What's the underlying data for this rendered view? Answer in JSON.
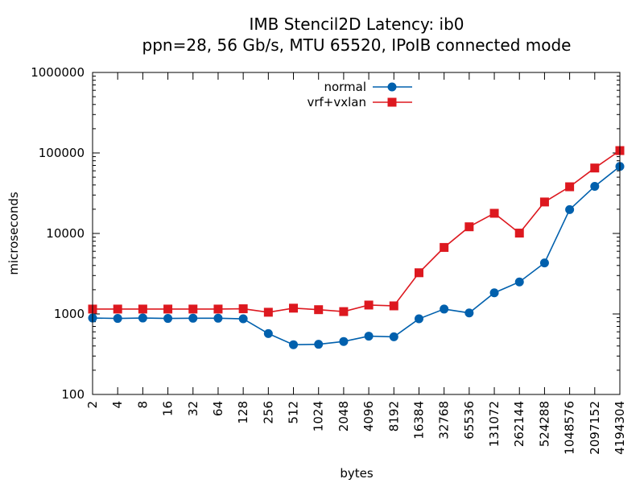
{
  "chart_data": {
    "type": "line",
    "title": "IMB Stencil2D Latency: ib0",
    "subtitle": "ppn=28, 56 Gb/s, MTU 65520, IPoIB connected mode",
    "xlabel": "bytes",
    "ylabel": "microseconds",
    "x_scale": "log2",
    "y_scale": "log10",
    "xlim": [
      2,
      4194304
    ],
    "ylim": [
      100,
      1000000
    ],
    "x_tick_labels": [
      "2",
      "4",
      "8",
      "16",
      "32",
      "64",
      "128",
      "256",
      "512",
      "1024",
      "2048",
      "4096",
      "8192",
      "16384",
      "32768",
      "65536",
      "131072",
      "262144",
      "524288",
      "1048576",
      "2097152",
      "4194304"
    ],
    "y_tick_labels": [
      "100",
      "1000",
      "10000",
      "100000",
      "1000000"
    ],
    "grid": false,
    "legend_position": "top-center",
    "x": [
      2,
      4,
      8,
      16,
      32,
      64,
      128,
      256,
      512,
      1024,
      2048,
      4096,
      8192,
      16384,
      32768,
      65536,
      131072,
      262144,
      524288,
      1048576,
      2097152,
      4194304
    ],
    "series": [
      {
        "name": "normal",
        "color": "#0060ad",
        "marker": "circle",
        "values": [
          890,
          880,
          890,
          880,
          885,
          885,
          870,
          570,
          415,
          420,
          455,
          530,
          520,
          870,
          1150,
          1030,
          1830,
          2500,
          4300,
          19800,
          38500,
          68000
        ]
      },
      {
        "name": "vrf+vxlan",
        "color": "#dd181f",
        "marker": "square",
        "values": [
          1150,
          1150,
          1150,
          1150,
          1150,
          1150,
          1160,
          1050,
          1180,
          1130,
          1070,
          1290,
          1260,
          3250,
          6700,
          12100,
          17800,
          10100,
          24600,
          38000,
          65000,
          107000
        ]
      }
    ]
  }
}
